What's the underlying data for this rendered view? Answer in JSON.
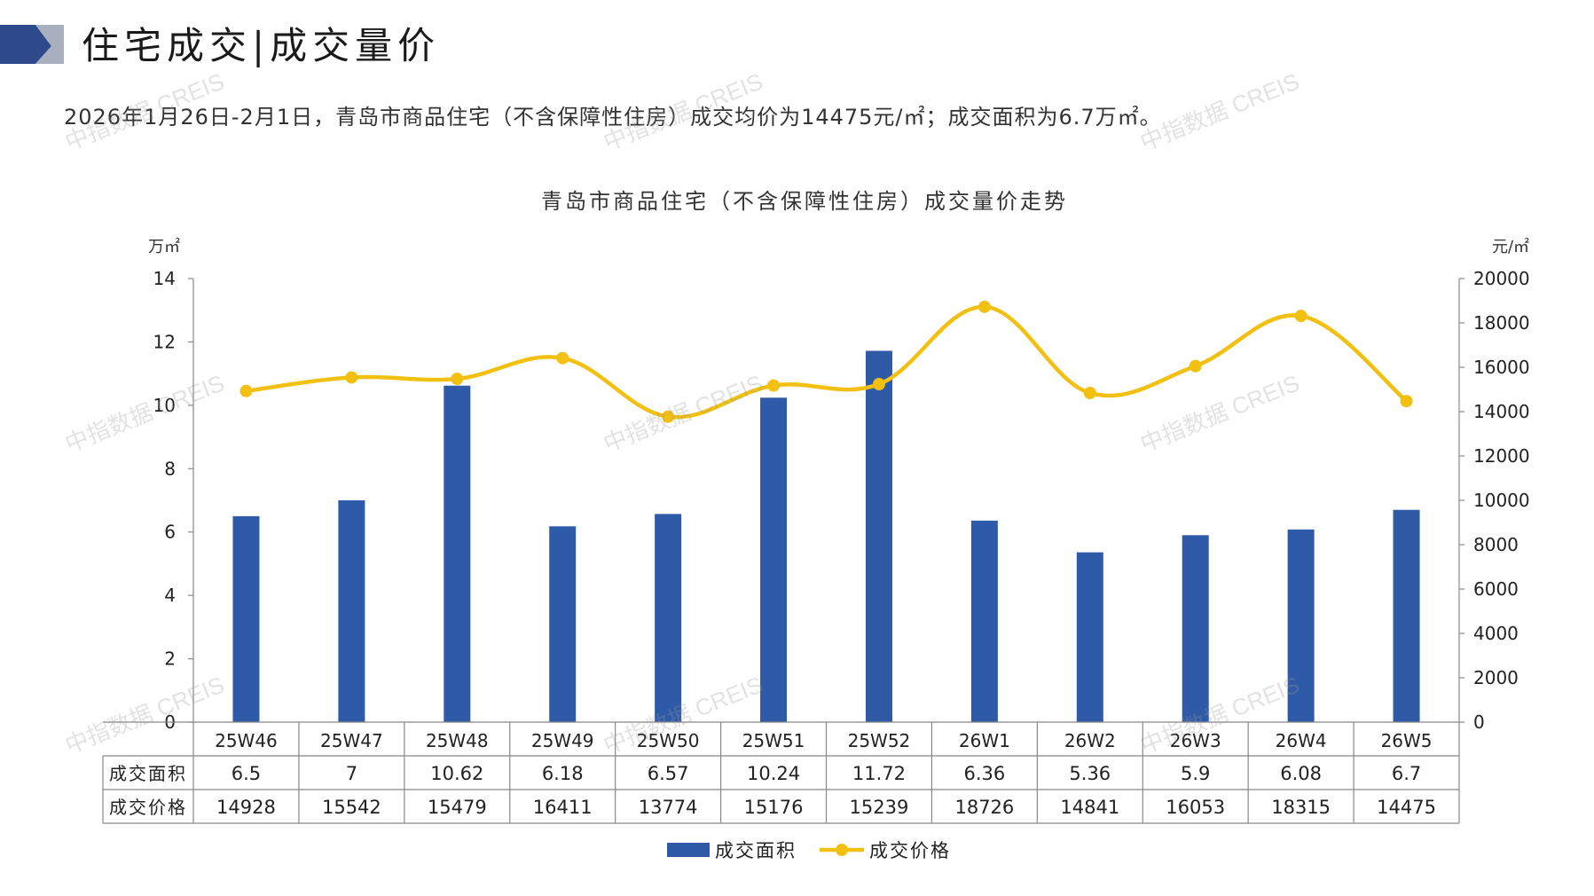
{
  "header": {
    "title": "住宅成交|成交量价",
    "summary": "2026年1月26日-2月1日，青岛市商品住宅（不含保障性住房）成交均价为14475元/㎡；成交面积为6.7万㎡。",
    "colors": {
      "dark": "#2e4a8c",
      "grey": "#a9b0bd"
    }
  },
  "watermark": "中指数据 CREIS",
  "chart_data": {
    "type": "bar+line",
    "title": "青岛市商品住宅（不含保障性住房）成交量价走势",
    "categories": [
      "25W46",
      "25W47",
      "25W48",
      "25W49",
      "25W50",
      "25W51",
      "25W52",
      "26W1",
      "26W2",
      "26W3",
      "26W4",
      "26W5"
    ],
    "series": [
      {
        "name": "成交面积",
        "type": "bar",
        "axis": "left",
        "color": "#2e5aa8",
        "values": [
          6.5,
          7,
          10.62,
          6.18,
          6.57,
          10.24,
          11.72,
          6.36,
          5.36,
          5.9,
          6.08,
          6.7
        ],
        "labels": [
          "6.5",
          "7",
          "10.62",
          "6.18",
          "6.57",
          "10.24",
          "11.72",
          "6.36",
          "5.36",
          "5.9",
          "6.08",
          "6.7"
        ]
      },
      {
        "name": "成交价格",
        "type": "line",
        "axis": "right",
        "color": "#f2c010",
        "values": [
          14928,
          15542,
          15479,
          16411,
          13774,
          15176,
          15239,
          18726,
          14841,
          16053,
          18315,
          14475
        ],
        "labels": [
          "14928",
          "15542",
          "15479",
          "16411",
          "13774",
          "15176",
          "15239",
          "18726",
          "14841",
          "16053",
          "18315",
          "14475"
        ]
      }
    ],
    "y_left": {
      "unit": "万㎡",
      "min": 0,
      "max": 14,
      "ticks": [
        "0",
        "2",
        "4",
        "6",
        "8",
        "10",
        "12",
        "14"
      ]
    },
    "y_right": {
      "unit": "元/㎡",
      "min": 0,
      "max": 20000,
      "ticks": [
        "0",
        "2000",
        "4000",
        "6000",
        "8000",
        "10000",
        "12000",
        "14000",
        "16000",
        "18000",
        "20000"
      ]
    },
    "legend_position": "bottom-center",
    "data_table": true,
    "grid": false
  }
}
